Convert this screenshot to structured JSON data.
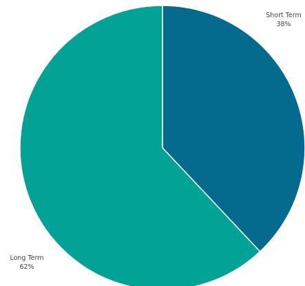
{
  "chart_data": {
    "type": "pie",
    "title": "",
    "start_angle": "12 o'clock",
    "direction": "clockwise",
    "slices": [
      {
        "label": "Short Term",
        "value": 38,
        "value_label": "38%",
        "color": "#046a8e"
      },
      {
        "label": "Long Term",
        "value": 62,
        "value_label": "62%",
        "color": "#02a296"
      }
    ],
    "legend": "none",
    "slice_border_color": "#ffffff"
  }
}
